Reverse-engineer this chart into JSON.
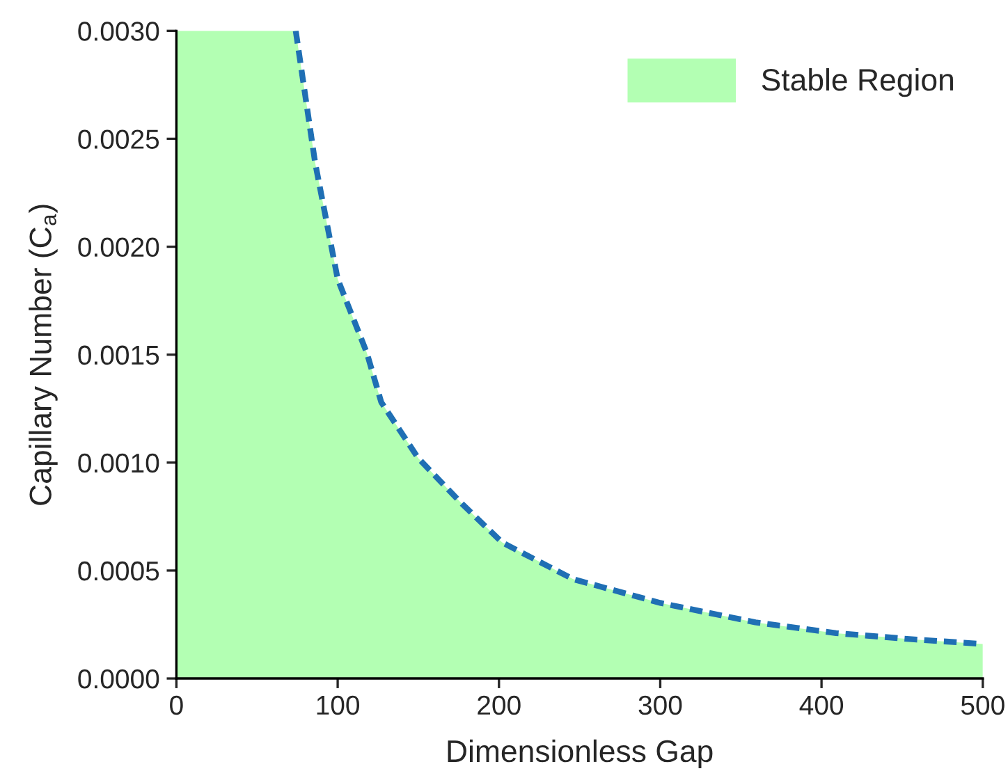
{
  "chart_data": {
    "type": "area",
    "xlabel": "Dimensionless Gap",
    "ylabel": "Capillary Number (C$_{a}$)",
    "xlim": [
      0,
      500
    ],
    "xticks": [
      0,
      100,
      200,
      300,
      400,
      500
    ],
    "ylim": [
      0,
      0.003
    ],
    "yticks": [
      {
        "value": 0,
        "label": "0.0000"
      },
      {
        "value": 0.0005,
        "label": "0.0005"
      },
      {
        "value": 0.001,
        "label": "0.0010"
      },
      {
        "value": 0.0015,
        "label": "0.0015"
      },
      {
        "value": 0.002,
        "label": "0.0020"
      },
      {
        "value": 0.0025,
        "label": "0.0025"
      },
      {
        "value": 0.003,
        "label": "0.0030"
      }
    ],
    "grid": false,
    "legend": "top right",
    "series": [
      {
        "name": "Stable Region",
        "color": "#b3ffb3",
        "x": [
          0,
          74,
          86,
          100,
          118,
          127,
          150,
          177,
          202,
          246,
          300,
          359,
          409,
          459,
          500
        ],
        "values": [
          0.003,
          0.003,
          0.00239,
          0.00185,
          0.00151,
          0.00128,
          0.00102,
          0.00081,
          0.00063,
          0.00046,
          0.00035,
          0.00026,
          0.00021,
          0.00018,
          0.00016
        ]
      },
      {
        "type": "line",
        "color": "#1f6fb4",
        "line_style": "dashed",
        "x": [
          74,
          86,
          100,
          118,
          127,
          150,
          177,
          202,
          246,
          300,
          359,
          409,
          459,
          500
        ],
        "values": [
          0.003,
          0.00239,
          0.00185,
          0.00151,
          0.00128,
          0.00102,
          0.00081,
          0.00063,
          0.00046,
          0.00035,
          0.00026,
          0.00021,
          0.00018,
          0.00016
        ]
      }
    ]
  }
}
